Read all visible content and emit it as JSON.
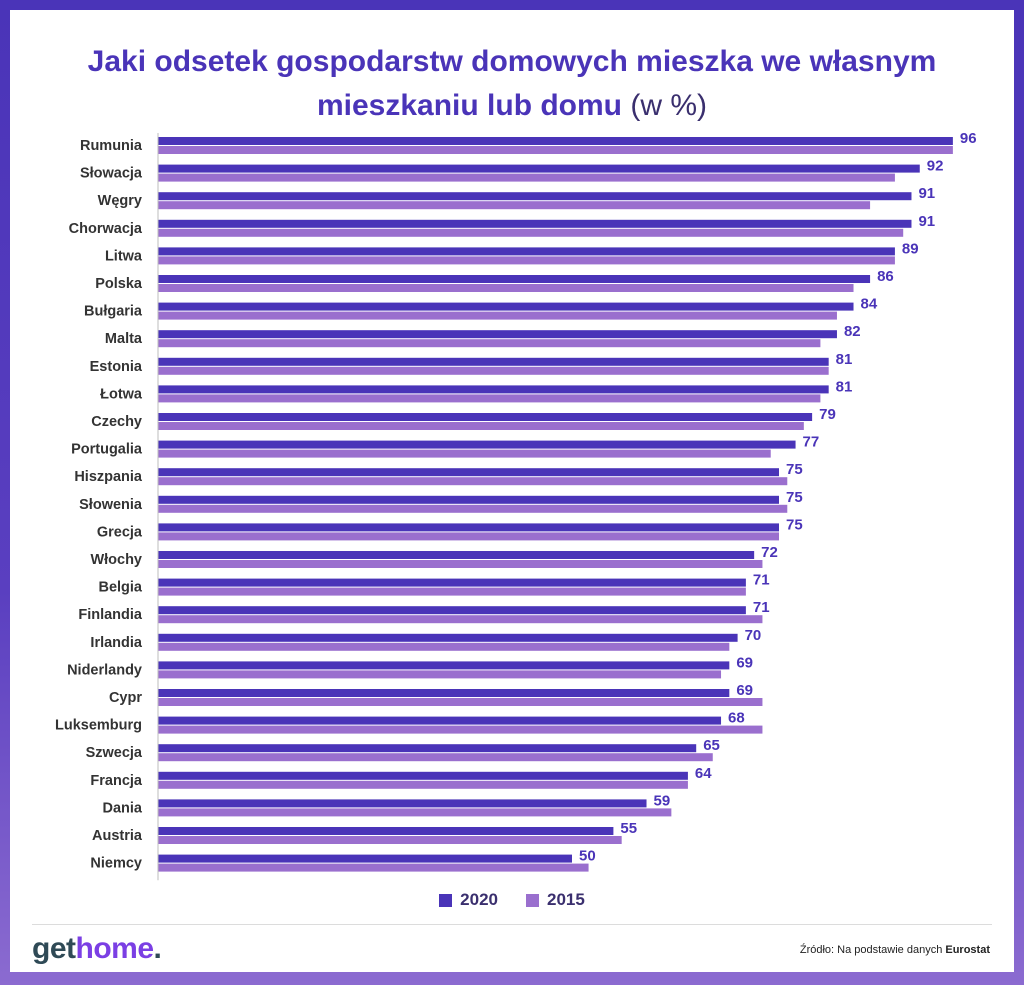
{
  "title_main": "Jaki odsetek gospodarstw domowych mieszka we własnym mieszkaniu lub domu",
  "title_unit": "(w %)",
  "colors": {
    "series_2020": "#4a34b8",
    "series_2015": "#9a6fce",
    "label": "#4a34b8",
    "category": "#333333"
  },
  "legend": [
    {
      "label": "2020",
      "color": "#4a34b8"
    },
    {
      "label": "2015",
      "color": "#9a6fce"
    }
  ],
  "logo": {
    "part1": "get",
    "part2": "home",
    "part3": "."
  },
  "source": {
    "prefix": "Źródło: Na podstawie danych",
    "name": "Eurostat"
  },
  "chart_data": {
    "type": "bar",
    "orientation": "horizontal",
    "title": "Jaki odsetek gospodarstw domowych mieszka we własnym mieszkaniu lub domu (w %)",
    "categories": [
      "Rumunia",
      "Słowacja",
      "Węgry",
      "Chorwacja",
      "Litwa",
      "Polska",
      "Bułgaria",
      "Malta",
      "Estonia",
      "Łotwa",
      "Czechy",
      "Portugalia",
      "Hiszpania",
      "Słowenia",
      "Grecja",
      "Włochy",
      "Belgia",
      "Finlandia",
      "Irlandia",
      "Niderlandy",
      "Cypr",
      "Luksemburg",
      "Szwecja",
      "Francja",
      "Dania",
      "Austria",
      "Niemcy"
    ],
    "series": [
      {
        "name": "2020",
        "values": [
          96,
          92,
          91,
          91,
          89,
          86,
          84,
          82,
          81,
          81,
          79,
          77,
          75,
          75,
          75,
          72,
          71,
          71,
          70,
          69,
          69,
          68,
          65,
          64,
          59,
          55,
          50
        ]
      },
      {
        "name": "2015",
        "values": [
          96,
          89,
          86,
          90,
          89,
          84,
          82,
          80,
          81,
          80,
          78,
          74,
          76,
          76,
          75,
          73,
          71,
          73,
          69,
          68,
          73,
          73,
          67,
          64,
          62,
          56,
          52
        ]
      }
    ],
    "xlim": [
      0,
      100
    ],
    "data_labels_series": "2020",
    "legend_position": "bottom-center",
    "grid": false
  }
}
